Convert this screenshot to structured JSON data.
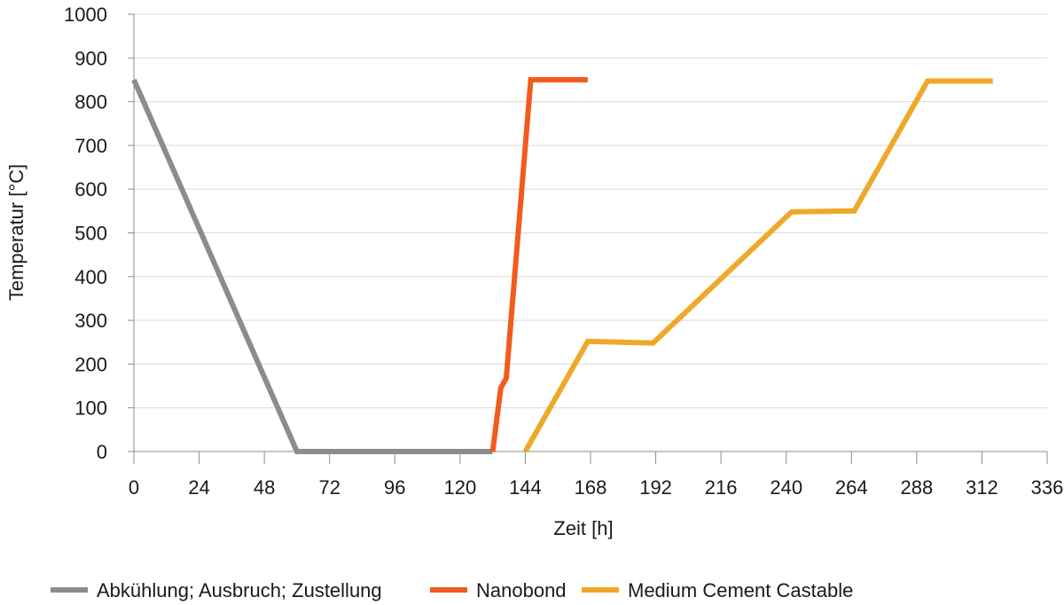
{
  "chart_data": {
    "type": "line",
    "title": "",
    "xlabel": "Zeit [h]",
    "ylabel": "Temperatur [°C]",
    "xlim": [
      0,
      336
    ],
    "ylim": [
      0,
      1000
    ],
    "xticks": [
      0,
      24,
      48,
      72,
      96,
      120,
      144,
      168,
      192,
      216,
      240,
      264,
      288,
      312,
      336
    ],
    "yticks": [
      0,
      100,
      200,
      300,
      400,
      500,
      600,
      700,
      800,
      900,
      1000
    ],
    "grid": "horizontal",
    "legend": "bottom",
    "series": [
      {
        "name": "Abkühlung; Ausbruch; Zustellung",
        "color": "#8c8c8c",
        "points": [
          [
            0,
            850
          ],
          [
            60,
            0
          ],
          [
            132,
            0
          ]
        ]
      },
      {
        "name": "Nanobond",
        "color": "#f25a1e",
        "points": [
          [
            132,
            0
          ],
          [
            135,
            145
          ],
          [
            137,
            168
          ],
          [
            146,
            850
          ],
          [
            167,
            850
          ]
        ]
      },
      {
        "name": "Medium Cement Castable",
        "color": "#eea92a",
        "points": [
          [
            144,
            0
          ],
          [
            167,
            252
          ],
          [
            191,
            248
          ],
          [
            242,
            548
          ],
          [
            265,
            550
          ],
          [
            292,
            847
          ],
          [
            316,
            847
          ]
        ]
      }
    ]
  }
}
